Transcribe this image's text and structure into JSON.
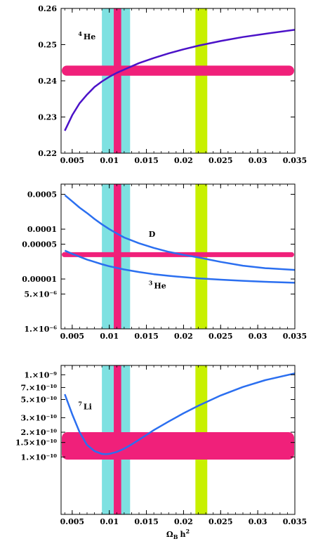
{
  "chart_data": [
    {
      "type": "line",
      "xlim": [
        0.0035,
        0.035
      ],
      "ylim": [
        0.22,
        0.26
      ],
      "yscale": "linear",
      "xticks": [
        "0.005",
        "0.01",
        "0.015",
        "0.02",
        "0.025",
        "0.03",
        "0.035"
      ],
      "yticks": [
        {
          "v": 0.22,
          "l": "0.22"
        },
        {
          "v": 0.23,
          "l": "0.23"
        },
        {
          "v": 0.24,
          "l": "0.24"
        },
        {
          "v": 0.25,
          "l": "0.25"
        },
        {
          "v": 0.26,
          "l": "0.26"
        }
      ],
      "vbands": [
        {
          "x0": 0.009,
          "x1": 0.0128,
          "color": "#7ee1e1"
        },
        {
          "x0": 0.0106,
          "x1": 0.0116,
          "color": "#f0207a"
        },
        {
          "x0": 0.0216,
          "x1": 0.0232,
          "color": "#c8f000"
        }
      ],
      "hband": {
        "y0": 0.2414,
        "y1": 0.2442,
        "color": "#f0207a"
      },
      "series": [
        {
          "label_main": "He",
          "label_sup": "4",
          "label_pos": {
            "x": 0.0058,
            "y": 0.2515
          },
          "color": "#4b12c8",
          "x": [
            0.004,
            0.005,
            0.006,
            0.007,
            0.008,
            0.009,
            0.01,
            0.011,
            0.012,
            0.014,
            0.016,
            0.018,
            0.02,
            0.022,
            0.025,
            0.028,
            0.031,
            0.035
          ],
          "y": [
            0.2262,
            0.2305,
            0.2338,
            0.2362,
            0.2383,
            0.2398,
            0.2411,
            0.2422,
            0.2431,
            0.2449,
            0.2463,
            0.2476,
            0.2487,
            0.2497,
            0.251,
            0.2521,
            0.253,
            0.2541
          ]
        }
      ]
    },
    {
      "type": "line",
      "xlim": [
        0.0035,
        0.035
      ],
      "ylim": [
        1e-06,
        0.0008
      ],
      "yscale": "log",
      "xticks": [
        "0.005",
        "0.01",
        "0.015",
        "0.02",
        "0.025",
        "0.03",
        "0.035"
      ],
      "yticks": [
        {
          "v": 0.0005,
          "l": "0.0005"
        },
        {
          "v": 0.0001,
          "l": "0.0001"
        },
        {
          "v": 5e-05,
          "l": "0.00005"
        },
        {
          "v": 1e-05,
          "l": "0.00001"
        },
        {
          "v": 5e-06,
          "l": "5.×10⁻⁶"
        },
        {
          "v": 1e-06,
          "l": "1.×10⁻⁶"
        }
      ],
      "vbands": [
        {
          "x0": 0.009,
          "x1": 0.0128,
          "color": "#7ee1e1"
        },
        {
          "x0": 0.0106,
          "x1": 0.0116,
          "color": "#f0207a"
        },
        {
          "x0": 0.0216,
          "x1": 0.0232,
          "color": "#c8f000"
        }
      ],
      "hband": {
        "y0": 2.75e-05,
        "y1": 3.45e-05,
        "color": "#f0207a"
      },
      "series": [
        {
          "label_main": "D",
          "label_sup": "",
          "label_pos": {
            "x": 0.0153,
            "y": 7e-05
          },
          "color": "#2b6ff0",
          "x": [
            0.004,
            0.005,
            0.006,
            0.007,
            0.008,
            0.009,
            0.01,
            0.011,
            0.012,
            0.014,
            0.016,
            0.018,
            0.02,
            0.022,
            0.025,
            0.028,
            0.031,
            0.035
          ],
          "y": [
            0.00048,
            0.00036,
            0.00027,
            0.00021,
            0.00016,
            0.000125,
            0.0001,
            8.2e-05,
            6.8e-05,
            5.2e-05,
            4.2e-05,
            3.5e-05,
            3.05e-05,
            2.7e-05,
            2.2e-05,
            1.85e-05,
            1.65e-05,
            1.52e-05
          ]
        },
        {
          "label_main": "He",
          "label_sup": "3",
          "label_pos": {
            "x": 0.0153,
            "y": 6.5e-06
          },
          "color": "#2b6ff0",
          "x": [
            0.004,
            0.005,
            0.006,
            0.007,
            0.008,
            0.009,
            0.01,
            0.012,
            0.014,
            0.016,
            0.018,
            0.02,
            0.022,
            0.025,
            0.028,
            0.031,
            0.035
          ],
          "y": [
            3.7e-05,
            3.2e-05,
            2.8e-05,
            2.45e-05,
            2.2e-05,
            1.98e-05,
            1.8e-05,
            1.55e-05,
            1.38e-05,
            1.25e-05,
            1.16e-05,
            1.09e-05,
            1.03e-05,
            9.7e-06,
            9.2e-06,
            8.8e-06,
            8.4e-06
          ]
        }
      ]
    },
    {
      "type": "line",
      "xlim": [
        0.0035,
        0.035
      ],
      "ylim": [
        2e-11,
        1.3e-09
      ],
      "yscale": "log",
      "xlabel_main": "Ω",
      "xlabel_sub": "B",
      "xlabel_rest": "h",
      "xlabel_sup": "2",
      "xticks": [
        "0.005",
        "0.01",
        "0.015",
        "0.02",
        "0.025",
        "0.03",
        "0.035"
      ],
      "yticks": [
        {
          "v": 1e-09,
          "l": "1.×10⁻⁹"
        },
        {
          "v": 7e-10,
          "l": "7.×10⁻¹⁰"
        },
        {
          "v": 5e-10,
          "l": "5.×10⁻¹⁰"
        },
        {
          "v": 3e-10,
          "l": "3.×10⁻¹⁰"
        },
        {
          "v": 2e-10,
          "l": "2.×10⁻¹⁰"
        },
        {
          "v": 1.5e-10,
          "l": "1.5×10⁻¹⁰"
        },
        {
          "v": 1e-10,
          "l": "1.×10⁻¹⁰"
        }
      ],
      "vbands": [
        {
          "x0": 0.009,
          "x1": 0.0128,
          "color": "#7ee1e1"
        },
        {
          "x0": 0.0106,
          "x1": 0.0116,
          "color": "#f0207a"
        },
        {
          "x0": 0.0216,
          "x1": 0.0232,
          "color": "#c8f000"
        }
      ],
      "hband": {
        "y0": 9.3e-11,
        "y1": 2e-10,
        "color": "#f0207a"
      },
      "series": [
        {
          "label_main": "Li",
          "label_sup": "7",
          "label_pos": {
            "x": 0.0058,
            "y": 3.8e-10
          },
          "color": "#2b6ff0",
          "x": [
            0.004,
            0.005,
            0.006,
            0.007,
            0.008,
            0.009,
            0.0095,
            0.01,
            0.011,
            0.012,
            0.013,
            0.014,
            0.015,
            0.016,
            0.018,
            0.02,
            0.022,
            0.025,
            0.028,
            0.031,
            0.035
          ],
          "y": [
            5.8e-10,
            3.3e-10,
            2e-10,
            1.4e-10,
            1.18e-10,
            1.09e-10,
            1.08e-10,
            1.09e-10,
            1.15e-10,
            1.26e-10,
            1.42e-10,
            1.62e-10,
            1.85e-10,
            2.12e-10,
            2.7e-10,
            3.4e-10,
            4.2e-10,
            5.6e-10,
            7.1e-10,
            8.6e-10,
            1.04e-09
          ]
        }
      ]
    }
  ]
}
